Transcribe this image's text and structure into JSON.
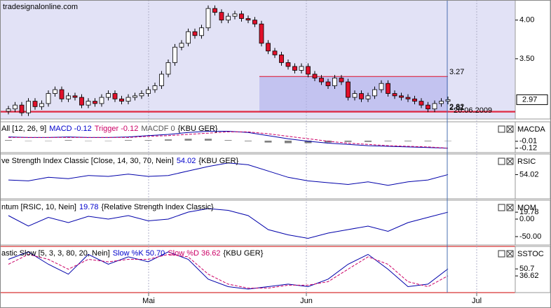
{
  "watermark": "tradesignalonline.com",
  "x_labels": [
    "Mai",
    "Jun",
    "Jul"
  ],
  "chart_data": [
    {
      "type": "candlestick",
      "open": [
        2.82,
        2.85,
        2.9,
        2.8,
        2.95,
        2.88,
        2.92,
        3.05,
        3.1,
        2.98,
        3.02,
        3.0,
        2.9,
        2.95,
        2.92,
        3.0,
        3.05,
        2.98,
        2.95,
        3.0,
        3.02,
        3.05,
        3.1,
        3.15,
        3.3,
        3.45,
        3.65,
        3.7,
        3.85,
        3.8,
        3.9,
        4.15,
        4.1,
        4.0,
        4.05,
        4.08,
        4.02,
        4.0,
        3.95,
        3.7,
        3.6,
        3.55,
        3.45,
        3.4,
        3.35,
        3.4,
        3.3,
        3.25,
        3.2,
        3.15,
        3.25,
        3.2,
        3.0,
        3.05,
        2.98,
        3.02,
        3.1,
        3.18,
        3.05,
        3.02,
        3.0,
        2.98,
        2.95,
        2.9,
        2.85,
        2.92,
        2.95
      ],
      "high": [
        2.89,
        2.94,
        2.94,
        2.99,
        2.99,
        2.96,
        3.09,
        3.14,
        3.14,
        3.06,
        3.06,
        3.04,
        2.99,
        2.99,
        3.04,
        3.09,
        3.09,
        3.02,
        3.04,
        3.06,
        3.09,
        3.14,
        3.19,
        3.34,
        3.49,
        3.69,
        3.74,
        3.89,
        3.89,
        3.94,
        4.19,
        4.19,
        4.14,
        4.09,
        4.12,
        4.12,
        4.06,
        4.04,
        3.99,
        3.74,
        3.64,
        3.59,
        3.49,
        3.44,
        3.44,
        3.44,
        3.34,
        3.29,
        3.24,
        3.29,
        3.29,
        3.24,
        3.09,
        3.09,
        3.06,
        3.14,
        3.22,
        3.22,
        3.09,
        3.06,
        3.04,
        3.02,
        2.99,
        2.94,
        2.96,
        2.99,
        3.01
      ],
      "low": [
        2.78,
        2.81,
        2.76,
        2.76,
        2.84,
        2.84,
        2.88,
        3.01,
        2.94,
        2.94,
        2.96,
        2.86,
        2.86,
        2.88,
        2.88,
        2.96,
        2.94,
        2.91,
        2.91,
        2.96,
        2.98,
        3.01,
        3.06,
        3.11,
        3.26,
        3.41,
        3.61,
        3.66,
        3.76,
        3.76,
        3.86,
        4.06,
        3.96,
        3.96,
        4.01,
        3.98,
        3.96,
        3.91,
        3.66,
        3.56,
        3.51,
        3.41,
        3.36,
        3.31,
        3.31,
        3.26,
        3.21,
        3.16,
        3.11,
        3.11,
        3.16,
        2.96,
        2.96,
        2.94,
        2.94,
        2.98,
        3.06,
        3.01,
        2.98,
        2.96,
        2.94,
        2.91,
        2.86,
        2.81,
        2.81,
        2.88,
        2.91
      ],
      "close": [
        2.85,
        2.9,
        2.8,
        2.95,
        2.88,
        2.92,
        3.05,
        3.1,
        2.98,
        3.02,
        3.0,
        2.9,
        2.95,
        2.92,
        3.0,
        3.05,
        2.98,
        2.95,
        3.0,
        3.02,
        3.05,
        3.1,
        3.15,
        3.3,
        3.45,
        3.65,
        3.7,
        3.85,
        3.8,
        3.9,
        4.15,
        4.1,
        4.0,
        4.05,
        4.08,
        4.02,
        4.0,
        3.95,
        3.7,
        3.6,
        3.55,
        3.45,
        3.4,
        3.35,
        3.4,
        3.3,
        3.25,
        3.2,
        3.15,
        3.25,
        3.2,
        3.0,
        3.05,
        2.98,
        3.02,
        3.1,
        3.18,
        3.05,
        3.02,
        3.0,
        2.98,
        2.95,
        2.9,
        2.85,
        2.92,
        2.95,
        2.97
      ],
      "up_color": "#ffffff",
      "down_color": "#e0102a",
      "ylim": [
        2.72,
        4.26
      ],
      "yticks": [
        {
          "value": 4,
          "label": "4.00"
        },
        {
          "value": 3.5,
          "label": "3.50"
        }
      ],
      "last": 2.97,
      "levels": [
        3.27,
        2.81,
        2.82
      ],
      "level_color": "#e0102a",
      "date_label": "26.06.2009"
    },
    {
      "type": "line",
      "name": "MACDA",
      "header": [
        "All [12, 26, 9]",
        "MACD -0.12",
        "Trigger -0.12",
        "MACDF 0",
        "{KBU GER}"
      ],
      "header_colors": [
        "#000000",
        "#0000cc",
        "#cc0066",
        "#555555",
        "#000000"
      ],
      "series": [
        {
          "color": "#0000aa",
          "values": [
            0.06,
            0.05,
            0.05,
            0.06,
            0.05,
            0.05,
            0.06,
            0.08,
            0.1,
            0.13,
            0.15,
            0.15,
            0.13,
            0.08,
            0.03,
            -0.01,
            -0.04,
            -0.06,
            -0.08,
            -0.09,
            -0.1,
            -0.11,
            -0.12
          ]
        },
        {
          "color": "#cc0066",
          "dashed": true,
          "values": [
            0.05,
            0.05,
            0.05,
            0.05,
            0.05,
            0.05,
            0.05,
            0.07,
            0.08,
            0.1,
            0.12,
            0.14,
            0.14,
            0.11,
            0.07,
            0.03,
            -0.01,
            -0.04,
            -0.06,
            -0.08,
            -0.09,
            -0.1,
            -0.12
          ]
        }
      ],
      "histogram": {
        "color": "#808080",
        "values": [
          0.01,
          0,
          0,
          0.01,
          0,
          0,
          0.01,
          0.01,
          0.02,
          0.03,
          0.03,
          0.01,
          -0.01,
          -0.03,
          -0.04,
          -0.04,
          -0.03,
          -0.02,
          -0.02,
          -0.01,
          -0.01,
          -0.01,
          0
        ]
      },
      "ylim": [
        -0.19,
        0.3
      ],
      "yticks": [
        -0.01,
        -0.12
      ]
    },
    {
      "type": "line",
      "name": "RSIC",
      "header": [
        "ve Strength Index Classic [Close, 14, 30, 70, Nein]",
        "54.02",
        "{KBU GER}"
      ],
      "header_colors": [
        "#000000",
        "#0000cc",
        "#000000"
      ],
      "series": [
        {
          "color": "#0000aa",
          "values": [
            42,
            40,
            48,
            45,
            52,
            50,
            55,
            50,
            52,
            62,
            72,
            80,
            76,
            62,
            48,
            40,
            36,
            32,
            38,
            30,
            38,
            42,
            54.02
          ]
        }
      ],
      "ylim": [
        0,
        100
      ],
      "yticks": [
        54.02
      ]
    },
    {
      "type": "line",
      "name": "MOM",
      "header": [
        "ntum [RSIC, 10, Nein]",
        "19.78",
        "{Relative Strength Index Classic}"
      ],
      "header_colors": [
        "#000000",
        "#0000cc",
        "#000000"
      ],
      "series": [
        {
          "color": "#0000aa",
          "values": [
            10,
            -20,
            5,
            -10,
            8,
            0,
            10,
            -5,
            0,
            20,
            30,
            25,
            10,
            -30,
            -45,
            -55,
            -40,
            -30,
            -20,
            -35,
            -10,
            5,
            19.78
          ]
        }
      ],
      "ylim": [
        -74,
        54
      ],
      "yticks": [
        19.78,
        {
          "value": 0,
          "label": "0.00"
        },
        {
          "value": -50,
          "label": "-50.00"
        }
      ]
    },
    {
      "type": "line",
      "name": "SSTOC",
      "header": [
        "astic Slow [5, 3, 3, 80, 20, Nein]",
        "Slow %K 50.70",
        "Slow %D 36.62",
        "{KBU GER}"
      ],
      "header_colors": [
        "#000000",
        "#0000cc",
        "#cc0066",
        "#000000"
      ],
      "series": [
        {
          "color": "#0000aa",
          "values": [
            70,
            85,
            60,
            40,
            80,
            60,
            75,
            65,
            85,
            70,
            30,
            15,
            10,
            15,
            20,
            15,
            30,
            60,
            80,
            50,
            15,
            20,
            50.7
          ]
        },
        {
          "color": "#cc0066",
          "dashed": true,
          "values": [
            60,
            80,
            70,
            50,
            70,
            65,
            70,
            70,
            80,
            75,
            40,
            20,
            12,
            12,
            18,
            18,
            25,
            50,
            75,
            60,
            25,
            15,
            36.62
          ]
        }
      ],
      "ylim": [
        3,
        96
      ],
      "yticks": [
        50.7,
        36.62
      ]
    }
  ]
}
